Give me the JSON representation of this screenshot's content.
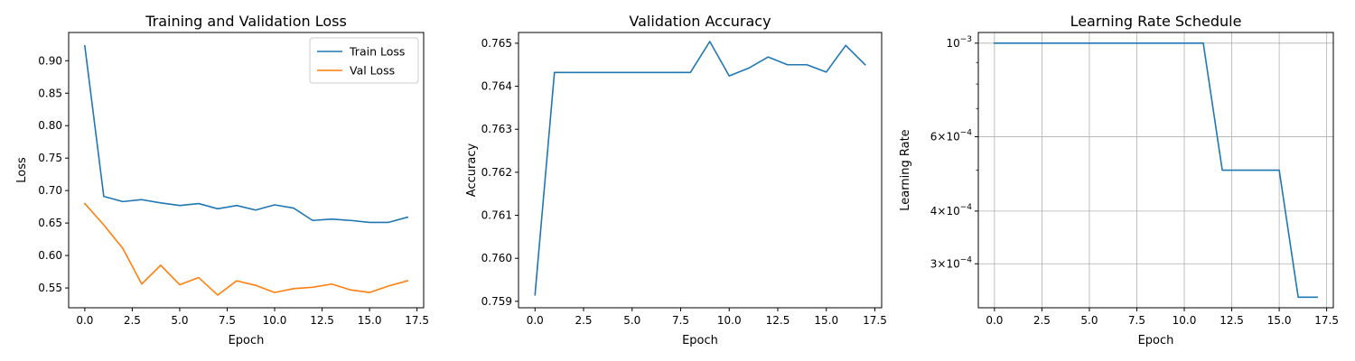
{
  "colors": {
    "series1": "#1f77b4",
    "series2": "#ff7f0e",
    "grid": "#b0b0b0",
    "axis": "#000000"
  },
  "chart_data": [
    {
      "type": "line",
      "title": "Training and Validation Loss",
      "xlabel": "Epoch",
      "ylabel": "Loss",
      "xlim": [
        -0.85,
        17.85
      ],
      "ylim": [
        0.5195,
        0.9435
      ],
      "xticks": [
        0.0,
        2.5,
        5.0,
        7.5,
        10.0,
        12.5,
        15.0,
        17.5
      ],
      "xtick_labels": [
        "0.0",
        "2.5",
        "5.0",
        "7.5",
        "10.0",
        "12.5",
        "15.0",
        "17.5"
      ],
      "yticks": [
        0.55,
        0.6,
        0.65,
        0.7,
        0.75,
        0.8,
        0.85,
        0.9
      ],
      "ytick_labels": [
        "0.55",
        "0.60",
        "0.65",
        "0.70",
        "0.75",
        "0.80",
        "0.85",
        "0.90"
      ],
      "y_scale": "linear",
      "grid": false,
      "legend": "top-right",
      "x": [
        0,
        1,
        2,
        3,
        4,
        5,
        6,
        7,
        8,
        9,
        10,
        11,
        12,
        13,
        14,
        15,
        16,
        17
      ],
      "series": [
        {
          "name": "Train Loss",
          "color": "#1f77b4",
          "values": [
            0.923,
            0.691,
            0.683,
            0.686,
            0.681,
            0.677,
            0.68,
            0.672,
            0.677,
            0.67,
            0.678,
            0.673,
            0.654,
            0.656,
            0.654,
            0.651,
            0.651,
            0.659
          ]
        },
        {
          "name": "Val Loss",
          "color": "#ff7f0e",
          "values": [
            0.68,
            0.647,
            0.611,
            0.556,
            0.585,
            0.555,
            0.566,
            0.539,
            0.561,
            0.554,
            0.543,
            0.549,
            0.551,
            0.556,
            0.547,
            0.543,
            0.553,
            0.561
          ]
        }
      ]
    },
    {
      "type": "line",
      "title": "Validation Accuracy",
      "xlabel": "Epoch",
      "ylabel": "Accuracy",
      "xlim": [
        -0.85,
        17.85
      ],
      "ylim": [
        0.75885,
        0.76525
      ],
      "xticks": [
        0.0,
        2.5,
        5.0,
        7.5,
        10.0,
        12.5,
        15.0,
        17.5
      ],
      "xtick_labels": [
        "0.0",
        "2.5",
        "5.0",
        "7.5",
        "10.0",
        "12.5",
        "15.0",
        "17.5"
      ],
      "yticks": [
        0.759,
        0.76,
        0.761,
        0.762,
        0.763,
        0.764,
        0.765
      ],
      "ytick_labels": [
        "0.759",
        "0.760",
        "0.761",
        "0.762",
        "0.763",
        "0.764",
        "0.765"
      ],
      "y_scale": "linear",
      "grid": false,
      "x": [
        0,
        1,
        2,
        3,
        4,
        5,
        6,
        7,
        8,
        9,
        10,
        11,
        12,
        13,
        14,
        15,
        16,
        17
      ],
      "series": [
        {
          "color": "#1f77b4",
          "values": [
            0.75915,
            0.76432,
            0.76432,
            0.76432,
            0.76432,
            0.76432,
            0.76432,
            0.76432,
            0.76432,
            0.76504,
            0.76424,
            0.76442,
            0.76468,
            0.7645,
            0.7645,
            0.76433,
            0.76495,
            0.7645
          ]
        }
      ]
    },
    {
      "type": "line",
      "title": "Learning Rate Schedule",
      "xlabel": "Epoch",
      "ylabel": "Learning Rate",
      "xlim": [
        -0.85,
        17.85
      ],
      "ylim": [
        0.000236,
        0.00106
      ],
      "xticks": [
        0.0,
        2.5,
        5.0,
        7.5,
        10.0,
        12.5,
        15.0,
        17.5
      ],
      "xtick_labels": [
        "0.0",
        "2.5",
        "5.0",
        "7.5",
        "10.0",
        "12.5",
        "15.0",
        "17.5"
      ],
      "yticks": [
        0.0003,
        0.0004,
        0.0006,
        0.001
      ],
      "ytick_labels": [
        {
          "mant": "3",
          "sep": "×",
          "base": "10",
          "exp": "−4"
        },
        {
          "mant": "4",
          "sep": "×",
          "base": "10",
          "exp": "−4"
        },
        {
          "mant": "6",
          "sep": "×",
          "base": "10",
          "exp": "−4"
        },
        {
          "mant": "",
          "sep": "",
          "base": "10",
          "exp": "−3"
        }
      ],
      "y_minor_ticks": [
        0.0005,
        0.0007,
        0.0008,
        0.0009
      ],
      "y_scale": "log",
      "grid": true,
      "x": [
        0,
        1,
        2,
        3,
        4,
        5,
        6,
        7,
        8,
        9,
        10,
        11,
        12,
        13,
        14,
        15,
        16,
        17
      ],
      "series": [
        {
          "color": "#1f77b4",
          "values": [
            0.001,
            0.001,
            0.001,
            0.001,
            0.001,
            0.001,
            0.001,
            0.001,
            0.001,
            0.001,
            0.001,
            0.001,
            0.0005,
            0.0005,
            0.0005,
            0.0005,
            0.00025,
            0.00025
          ]
        }
      ]
    }
  ]
}
